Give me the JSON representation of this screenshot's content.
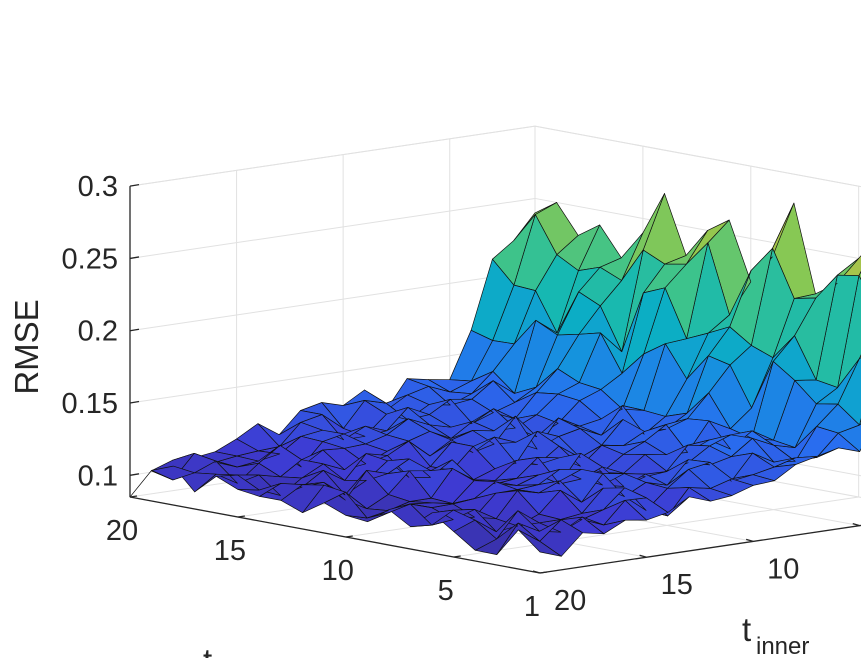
{
  "chart_data": {
    "type": "surface",
    "zlabel": "RMSE",
    "ylabel_main": "t",
    "ylabel_sub": "inner",
    "xlabel": "t",
    "x_ticks": [
      1,
      5,
      10,
      15,
      20
    ],
    "y_ticks": [
      1,
      5,
      10,
      15,
      20
    ],
    "z_ticks": [
      "0.1",
      "0.15",
      "0.2",
      "0.25",
      "0.3"
    ],
    "zlim": [
      0.085,
      0.3
    ],
    "xlim": [
      1,
      20
    ],
    "ylim": [
      1,
      20
    ],
    "grid": true,
    "colormap": "parula",
    "grid_points": 20,
    "rmse_description": "RMSE is lowest (~0.09-0.13) for large t_inner and rises sharply (up to ~0.30) for t_inner near 1-4",
    "back_ridge_values": [
      0.24,
      0.3,
      0.22,
      0.27,
      0.25,
      0.23,
      0.22,
      0.28,
      0.24,
      0.22,
      0.26,
      0.25,
      0.23,
      0.27,
      0.24,
      0.22,
      0.24,
      0.23,
      0.25,
      0.24
    ]
  }
}
